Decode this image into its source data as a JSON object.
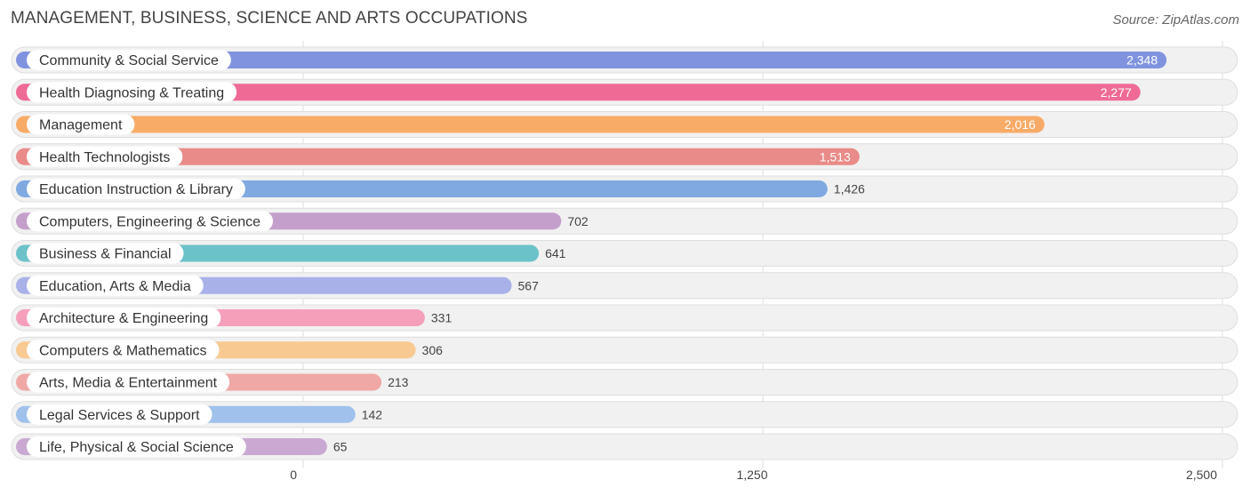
{
  "header": {
    "title": "MANAGEMENT, BUSINESS, SCIENCE AND ARTS OCCUPATIONS",
    "source": "Source: ZipAtlas.com"
  },
  "chart_data": {
    "type": "bar",
    "orientation": "horizontal",
    "title": "MANAGEMENT, BUSINESS, SCIENCE AND ARTS OCCUPATIONS",
    "xlim": [
      0,
      2500
    ],
    "x_ticks": [
      0,
      1250,
      2500
    ],
    "x_tick_labels": [
      "0",
      "1,250",
      "2,500"
    ],
    "grid": true,
    "categories": [
      "Community & Social Service",
      "Health Diagnosing & Treating",
      "Management",
      "Health Technologists",
      "Education Instruction & Library",
      "Computers, Engineering & Science",
      "Business & Financial",
      "Education, Arts & Media",
      "Architecture & Engineering",
      "Computers & Mathematics",
      "Arts, Media & Entertainment",
      "Legal Services & Support",
      "Life, Physical & Social Science"
    ],
    "values": [
      2348,
      2277,
      2016,
      1513,
      1426,
      702,
      641,
      567,
      331,
      306,
      213,
      142,
      65
    ],
    "value_labels": [
      "2,348",
      "2,277",
      "2,016",
      "1,513",
      "1,426",
      "702",
      "641",
      "567",
      "331",
      "306",
      "213",
      "142",
      "65"
    ],
    "colors": [
      "#8093de",
      "#f06a96",
      "#f8ab67",
      "#e98b88",
      "#7fa9e0",
      "#c59fcb",
      "#6cc2c9",
      "#a8b1e8",
      "#f59fbb",
      "#f9c992",
      "#efa8a6",
      "#9fc1ec",
      "#c9a9d1"
    ]
  }
}
